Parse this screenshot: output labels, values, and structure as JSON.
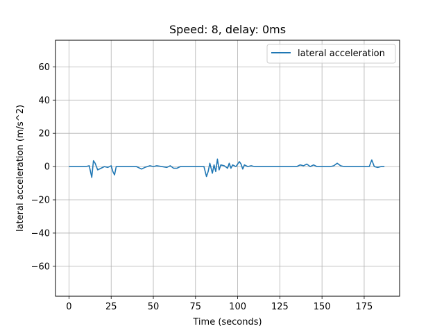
{
  "chart_data": {
    "type": "line",
    "title": "Speed: 8, delay: 0ms",
    "xlabel": "Time (seconds)",
    "ylabel": "lateral acceleration (m/s^2)",
    "xlim": [
      -8,
      196
    ],
    "ylim": [
      -78,
      76
    ],
    "xticks": [
      0,
      25,
      50,
      75,
      100,
      125,
      150,
      175
    ],
    "yticks": [
      -60,
      -40,
      -20,
      0,
      20,
      40,
      60
    ],
    "xtick_labels": [
      "0",
      "25",
      "50",
      "75",
      "100",
      "125",
      "150",
      "175"
    ],
    "ytick_labels": [
      "−60",
      "−40",
      "−20",
      "0",
      "20",
      "40",
      "60"
    ],
    "grid": true,
    "legend_position": "top-right",
    "colors": {
      "series": "#1f77b4",
      "grid": "#b0b0b0"
    },
    "series": [
      {
        "name": "lateral acceleration",
        "x": [
          0,
          10,
          12,
          13.5,
          14.5,
          15.5,
          17,
          19,
          21,
          23,
          25,
          26,
          27,
          28,
          30,
          40,
          43,
          45,
          48,
          50,
          52,
          55,
          58,
          60,
          62,
          64,
          66,
          68,
          70,
          75,
          80,
          81.5,
          82.5,
          83.5,
          85,
          86,
          87,
          88,
          89,
          90,
          92,
          94,
          95,
          96,
          97,
          99,
          101,
          102,
          103,
          104,
          106,
          108,
          110,
          115,
          120,
          125,
          130,
          135,
          137,
          139,
          141,
          143,
          145,
          147,
          150,
          152,
          155,
          157,
          159,
          161,
          163,
          165,
          170,
          175,
          178,
          179.5,
          181,
          183,
          185,
          187
        ],
        "y": [
          0,
          0,
          0.5,
          -6.5,
          3.5,
          2,
          -2,
          -1,
          0,
          -0.5,
          0.5,
          -3,
          -5,
          0,
          0,
          0,
          -1.5,
          -0.5,
          0.5,
          0,
          0.5,
          0,
          -0.5,
          0.5,
          -1,
          -1,
          0,
          0,
          0,
          0,
          0,
          -6,
          -3,
          2,
          -4,
          1,
          -3,
          4.5,
          -2,
          1,
          0.5,
          -1,
          2,
          -1,
          1,
          0,
          3,
          1.5,
          -1.5,
          1,
          0,
          0.5,
          0,
          0,
          0,
          0,
          0,
          0,
          1,
          0.5,
          1.5,
          0,
          1,
          0,
          0,
          0,
          0,
          0.5,
          2,
          0.5,
          0,
          0,
          0,
          0,
          0,
          4,
          0,
          -0.5,
          0,
          0
        ]
      }
    ]
  }
}
